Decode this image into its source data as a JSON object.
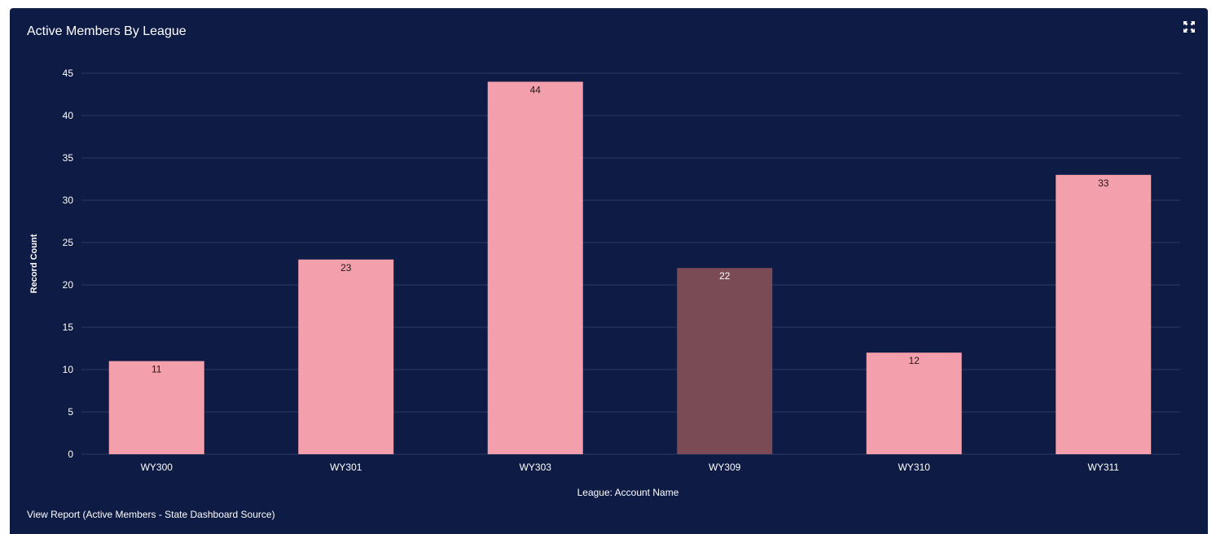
{
  "panel": {
    "title": "Active Members By League",
    "expand_icon": "expand-arrows-icon",
    "view_report_label": "View Report (Active Members - State Dashboard Source)"
  },
  "colors": {
    "background": "#0d1b45",
    "bar": "#f4a0ac",
    "bar_highlight": "#7a4a55",
    "gridline": "#2a3a63",
    "text": "#ffffff",
    "data_label": "#1a1a1a"
  },
  "chart_data": {
    "type": "bar",
    "title": "Active Members By League",
    "xlabel": "League: Account Name",
    "ylabel": "Record Count",
    "categories": [
      "WY300",
      "WY301",
      "WY303",
      "WY309",
      "WY310",
      "WY311"
    ],
    "values": [
      11,
      23,
      44,
      22,
      12,
      33
    ],
    "highlighted_category": "WY309",
    "ylim": [
      0,
      45
    ],
    "yticks": [
      0,
      5,
      10,
      15,
      20,
      25,
      30,
      35,
      40,
      45
    ],
    "grid": true,
    "data_labels": true,
    "legend": "none"
  }
}
